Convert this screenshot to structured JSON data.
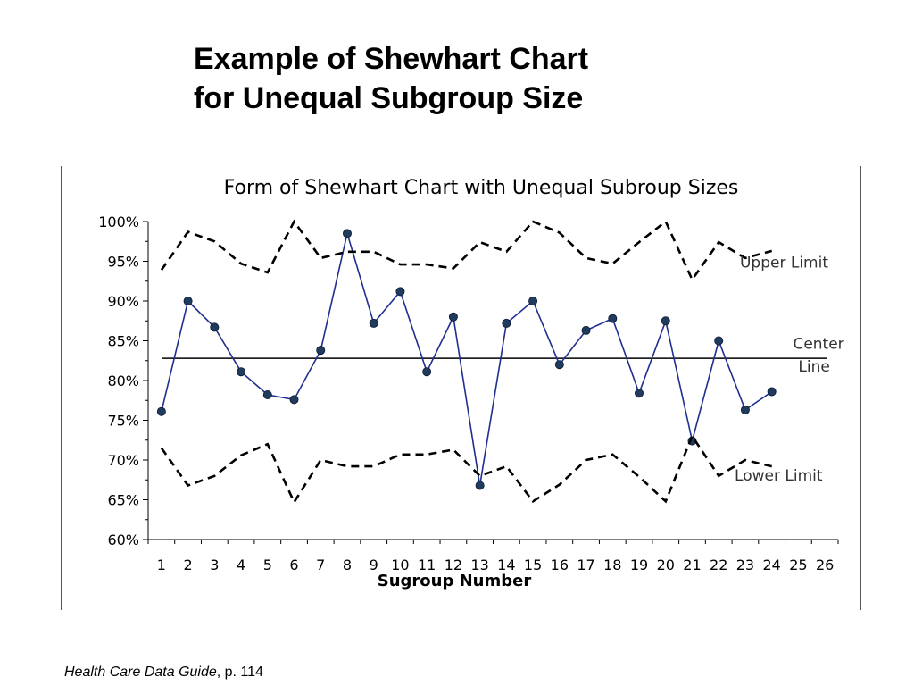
{
  "slide": {
    "title_line1": "Example of Shewhart Chart",
    "title_line2": "for Unequal Subgroup Size",
    "caption_source": "Health Care Data Guide",
    "caption_page": ", p. 114"
  },
  "chart_data": {
    "type": "line",
    "title": "Form of Shewhart Chart with Unequal Subroup Sizes",
    "xlabel": "Sugroup Number",
    "ylabel": "",
    "xlim": [
      1,
      26
    ],
    "ylim": [
      60,
      100
    ],
    "x_ticks": [
      1,
      2,
      3,
      4,
      5,
      6,
      7,
      8,
      9,
      10,
      11,
      12,
      13,
      14,
      15,
      16,
      17,
      18,
      19,
      20,
      21,
      22,
      23,
      24,
      25,
      26
    ],
    "y_ticks": [
      60,
      65,
      70,
      75,
      80,
      85,
      90,
      95,
      100
    ],
    "y_tick_labels": [
      "60%",
      "65%",
      "70%",
      "75%",
      "80%",
      "85%",
      "90%",
      "95%",
      "100%"
    ],
    "center_line": 82.8,
    "series": [
      {
        "name": "",
        "style": "solid-markers",
        "color": "#1f2f8f",
        "marker_color": "#1f3b5e",
        "x": [
          1,
          2,
          3,
          4,
          5,
          6,
          7,
          8,
          9,
          10,
          11,
          12,
          13,
          14,
          15,
          16,
          17,
          18,
          19,
          20,
          21,
          22,
          23,
          24
        ],
        "values": [
          76.1,
          90.0,
          86.7,
          81.1,
          78.2,
          77.6,
          83.8,
          98.5,
          87.2,
          91.2,
          81.1,
          88.0,
          66.8,
          87.2,
          90.0,
          82.0,
          86.3,
          87.8,
          78.4,
          87.5,
          72.4,
          85.0,
          76.3,
          78.6
        ]
      },
      {
        "name": "Upper Limit",
        "style": "dashed",
        "color": "#000000",
        "x": [
          1,
          2,
          3,
          4,
          5,
          6,
          7,
          8,
          9,
          10,
          11,
          12,
          13,
          14,
          15,
          16,
          17,
          18,
          19,
          20,
          21,
          22,
          23,
          24
        ],
        "values": [
          93.9,
          98.7,
          97.5,
          94.7,
          93.6,
          100,
          95.4,
          96.2,
          96.2,
          94.6,
          94.6,
          94.1,
          97.4,
          96.2,
          100,
          98.6,
          95.4,
          94.7,
          97.4,
          100,
          92.7,
          97.4,
          95.4,
          96.3
        ]
      },
      {
        "name": "Lower Limit",
        "style": "dashed",
        "color": "#000000",
        "x": [
          1,
          2,
          3,
          4,
          5,
          6,
          7,
          8,
          9,
          10,
          11,
          12,
          13,
          14,
          15,
          16,
          17,
          18,
          19,
          20,
          21,
          22,
          23,
          24
        ],
        "values": [
          71.5,
          66.8,
          68.0,
          70.6,
          72.0,
          64.7,
          70.0,
          69.2,
          69.2,
          70.7,
          70.7,
          71.3,
          68.0,
          69.2,
          64.8,
          66.9,
          70.0,
          70.7,
          67.9,
          64.8,
          73.0,
          68.0,
          70.0,
          69.2
        ]
      }
    ],
    "annotations": [
      {
        "text": "Upper Limit",
        "x": 22.8,
        "y": 94.2
      },
      {
        "text": "Center",
        "x": 24.8,
        "y": 84.0
      },
      {
        "text": "Line",
        "x": 25.0,
        "y": 81.1
      },
      {
        "text": "Lower Limit",
        "x": 22.6,
        "y": 67.4
      }
    ],
    "grid": false,
    "legend": "none"
  }
}
